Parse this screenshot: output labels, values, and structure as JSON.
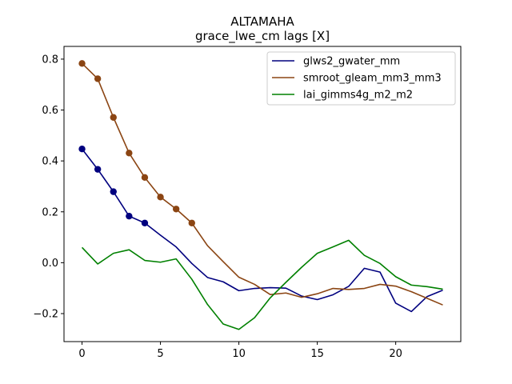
{
  "chart_data": {
    "type": "line",
    "title": "ALTAMAHA",
    "subtitle": "grace_lwe_cm lags [X]",
    "xlim": [
      -1.15,
      24.15
    ],
    "ylim": [
      -0.31,
      0.85
    ],
    "x_ticks": [
      0,
      5,
      10,
      15,
      20
    ],
    "y_ticks": [
      -0.2,
      0.0,
      0.2,
      0.4,
      0.6,
      0.8
    ],
    "y_tick_labels": [
      "−0.2",
      "0.0",
      "0.2",
      "0.4",
      "0.6",
      "0.8"
    ],
    "legend_position": "upper right",
    "x": [
      0,
      1,
      2,
      3,
      4,
      5,
      6,
      7,
      8,
      9,
      10,
      11,
      12,
      13,
      14,
      15,
      16,
      17,
      18,
      19,
      20,
      21,
      22,
      23
    ],
    "series": [
      {
        "name": "glws2_gwater_mm",
        "color": "#00007f",
        "values": [
          0.447,
          0.367,
          0.279,
          0.183,
          0.156,
          0.108,
          0.062,
          -0.003,
          -0.058,
          -0.075,
          -0.11,
          -0.101,
          -0.098,
          -0.1,
          -0.131,
          -0.145,
          -0.126,
          -0.093,
          -0.022,
          -0.037,
          -0.159,
          -0.192,
          -0.133,
          -0.108
        ],
        "marker_count": 5
      },
      {
        "name": "smroot_gleam_mm3_mm3",
        "color": "#8b4513",
        "values": [
          0.783,
          0.723,
          0.571,
          0.431,
          0.335,
          0.258,
          0.211,
          0.156,
          0.067,
          0.004,
          -0.057,
          -0.085,
          -0.125,
          -0.119,
          -0.136,
          -0.122,
          -0.101,
          -0.105,
          -0.101,
          -0.085,
          -0.092,
          -0.114,
          -0.14,
          -0.166
        ],
        "marker_count": 8
      },
      {
        "name": "lai_gimms4g_m2_m2",
        "color": "#008000",
        "values": [
          0.06,
          -0.005,
          0.037,
          0.051,
          0.009,
          0.002,
          0.015,
          -0.065,
          -0.164,
          -0.241,
          -0.262,
          -0.216,
          -0.138,
          -0.077,
          -0.018,
          0.037,
          0.062,
          0.088,
          0.029,
          -0.003,
          -0.055,
          -0.088,
          -0.094,
          -0.104
        ],
        "marker_count": 0
      }
    ]
  }
}
